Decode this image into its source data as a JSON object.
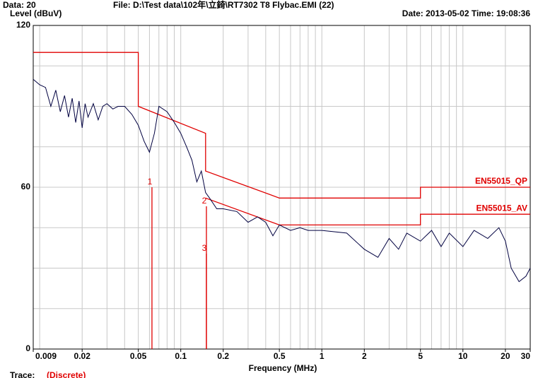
{
  "chart_data": {
    "type": "line",
    "header_left": "Data: 20",
    "title": "File: D:\\Test data\\102年\\立錡\\RT7302 T8 Flybac.EMI  (22)",
    "header_right": "Date: 2013-05-02  Time: 19:08:36",
    "ylabel": "Level (dBuV)",
    "xlabel": "Frequency (MHz)",
    "trace_label": "Trace:",
    "trace_mode": "(Discrete)",
    "log_x": true,
    "xlim": [
      0.009,
      30
    ],
    "xticks": [
      0.009,
      0.02,
      0.05,
      0.1,
      0.2,
      0.5,
      1,
      2,
      5,
      10,
      20,
      30
    ],
    "ylim": [
      0,
      120
    ],
    "yticks": [
      0,
      60,
      120
    ],
    "ygrid": [
      15,
      30,
      45,
      75,
      90,
      105
    ],
    "grid": true,
    "series": [
      {
        "name": "EN55015_QP",
        "color": "#e00000",
        "x": [
          0.009,
          0.05,
          0.05,
          0.15,
          0.15,
          0.5,
          5,
          5,
          30
        ],
        "values": [
          110,
          110,
          90,
          80,
          66,
          56,
          56,
          60,
          60
        ]
      },
      {
        "name": "EN55015_AV",
        "color": "#e00000",
        "x": [
          0.15,
          0.5,
          5,
          5,
          30
        ],
        "values": [
          56,
          46,
          46,
          50,
          50
        ]
      },
      {
        "color": "#000040",
        "x": [
          0.009,
          0.01,
          0.011,
          0.012,
          0.013,
          0.014,
          0.015,
          0.016,
          0.017,
          0.018,
          0.019,
          0.02,
          0.021,
          0.022,
          0.024,
          0.026,
          0.028,
          0.03,
          0.033,
          0.036,
          0.04,
          0.045,
          0.05,
          0.055,
          0.06,
          0.065,
          0.07,
          0.08,
          0.09,
          0.1,
          0.11,
          0.12,
          0.13,
          0.14,
          0.15,
          0.16,
          0.18,
          0.2,
          0.25,
          0.3,
          0.35,
          0.4,
          0.45,
          0.5,
          0.6,
          0.7,
          0.8,
          1,
          1.5,
          2,
          2.5,
          3,
          3.5,
          4,
          5,
          6,
          7,
          8,
          10,
          12,
          15,
          18,
          20,
          22,
          25,
          28,
          30
        ],
        "values": [
          100,
          98,
          97,
          90,
          96,
          88,
          94,
          86,
          93,
          84,
          92,
          82,
          91,
          86,
          91,
          85,
          90,
          91,
          89,
          90,
          90,
          87,
          83,
          77,
          73,
          80,
          90,
          88,
          84,
          80,
          75,
          70,
          62,
          66,
          58,
          56,
          52,
          52,
          51,
          47,
          49,
          47,
          42,
          46,
          44,
          45,
          44,
          44,
          43,
          37,
          34,
          41,
          37,
          43,
          40,
          44,
          38,
          43,
          38,
          44,
          41,
          45,
          40,
          30,
          25,
          27,
          30
        ]
      }
    ],
    "markers": [
      {
        "label": "1",
        "x": 0.0625
      },
      {
        "label": "2",
        "x": 0.152
      },
      {
        "label": "3",
        "x": 0.152
      }
    ]
  }
}
